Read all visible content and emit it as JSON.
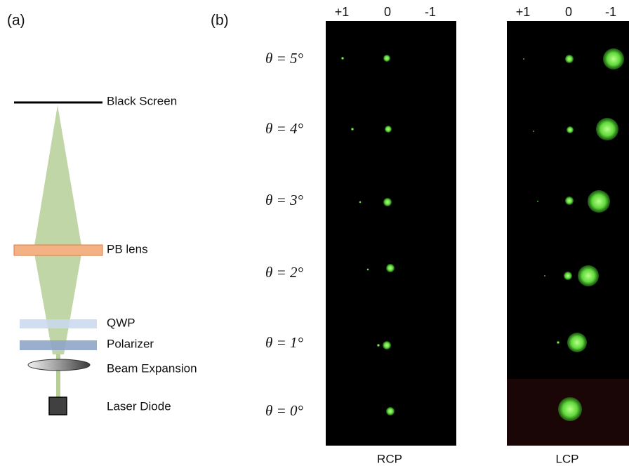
{
  "panel_a": {
    "label": "(a)",
    "components": [
      "Black Screen",
      "PB lens",
      "QWP",
      "Polarizer",
      "Beam Expansion",
      "Laser Diode"
    ]
  },
  "panel_b": {
    "label": "(b)",
    "row_labels": [
      "θ = 5°",
      "θ = 4°",
      "θ = 3°",
      "θ = 2°",
      "θ = 1°",
      "θ = 0°"
    ],
    "images": [
      {
        "name": "RCP",
        "column_labels": [
          "+1",
          "0",
          "-1"
        ]
      },
      {
        "name": "LCP",
        "column_labels": [
          "+1",
          "0",
          "-1"
        ]
      }
    ]
  }
}
